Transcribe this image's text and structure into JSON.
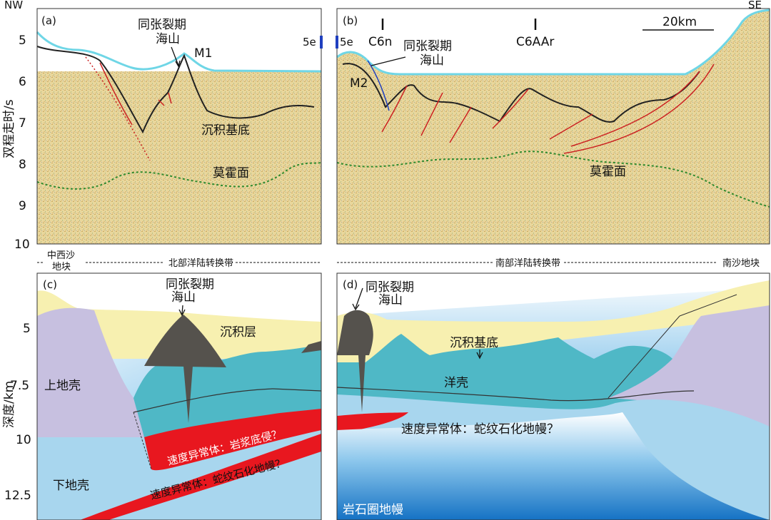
{
  "corners": {
    "nw": "NW",
    "se": "SE"
  },
  "panels": {
    "a": {
      "label": "(a)"
    },
    "b": {
      "label": "(b)"
    },
    "c": {
      "label": "(c)"
    },
    "d": {
      "label": "(d)"
    }
  },
  "top": {
    "yaxis_label": "双程走时/s",
    "yticks": [
      "5",
      "6",
      "7",
      "8",
      "9",
      "10"
    ],
    "seamount_line1": "同张裂期",
    "seamount_line2": "海山",
    "m1": "M1",
    "m2": "M2",
    "basement": "沉积基底",
    "moho": "莫霍面",
    "anomaly_5e_left": "5e",
    "anomaly_5e_right": "5e",
    "c6n": "C6n",
    "c6aar": "C6AAr",
    "scale": "20km",
    "colors": {
      "seismic": "#e6d59a",
      "seafloor": "#6fd6e6",
      "fault": "#cc2222",
      "moho": "#2e8a2e",
      "anomaly": "#1f3fbf"
    }
  },
  "zones": {
    "zhongxisha": [
      "中西沙",
      "地块"
    ],
    "north": "北部洋陆转换带",
    "south": "南部洋陆转换带",
    "nansha": "南沙地块"
  },
  "bottom": {
    "yaxis_label": "深度/km",
    "yticks": [
      "5",
      "7.5",
      "10",
      "12.5"
    ],
    "sediment": "沉积层",
    "upper_crust": "上地壳",
    "lower_crust": "下地壳",
    "magma": "速度异常体：岩浆底侵？",
    "serp_c": "速度异常体：蛇纹石化地幔？",
    "serp_d": "速度异常体：蛇纹石化地幔？",
    "basement": "沉积基底",
    "oceanic": "洋壳",
    "mantle": "岩石圈地幔",
    "seamount_line1": "同张裂期",
    "seamount_line2": "海山",
    "colors": {
      "sediment": "#f7f0b0",
      "upper_crust": "#c7c0e0",
      "lower_crust": "#a8d6ee",
      "oceanic": "#4fb8c6",
      "seamount": "#55524d",
      "magma": "#e8171f",
      "mantle": "#1f8ad0"
    }
  }
}
